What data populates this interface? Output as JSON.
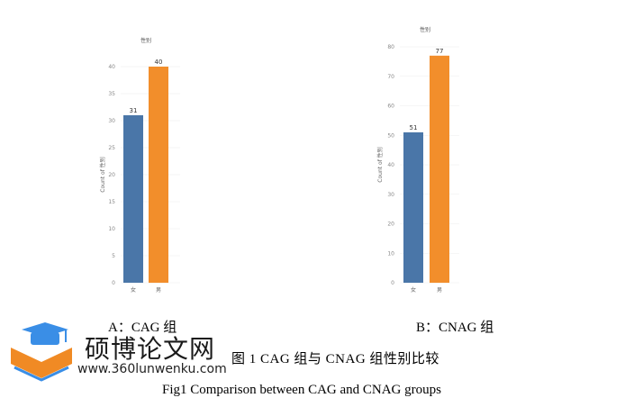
{
  "chart_data": [
    {
      "type": "bar",
      "title": "性别",
      "ylabel": "Count of 性别",
      "categories": [
        "女",
        "男"
      ],
      "values": [
        31,
        40
      ],
      "colors": [
        "#4a76a8",
        "#f28e2b"
      ],
      "ylim": [
        0,
        40
      ],
      "yticks": [
        0,
        5,
        10,
        15,
        20,
        25,
        30,
        35,
        40
      ],
      "grid": true
    },
    {
      "type": "bar",
      "title": "性别",
      "ylabel": "Count of 性别",
      "categories": [
        "女",
        "男"
      ],
      "values": [
        51,
        77
      ],
      "colors": [
        "#4a76a8",
        "#f28e2b"
      ],
      "ylim": [
        0,
        80
      ],
      "yticks": [
        0,
        10,
        20,
        30,
        40,
        50,
        60,
        70,
        80
      ],
      "grid": true
    }
  ],
  "captions": {
    "a": "A：CAG 组",
    "b": "B：CNAG 组",
    "fig_cn": "图 1 CAG 组与 CNAG 组性别比较",
    "fig_en": "Fig1 Comparison between CAG and CNAG groups"
  },
  "watermark": {
    "brand": "硕博论文网",
    "url": "www.360lunwenku.com",
    "colors": {
      "cap": "#3a8ee6",
      "book": "#f08a24"
    }
  }
}
